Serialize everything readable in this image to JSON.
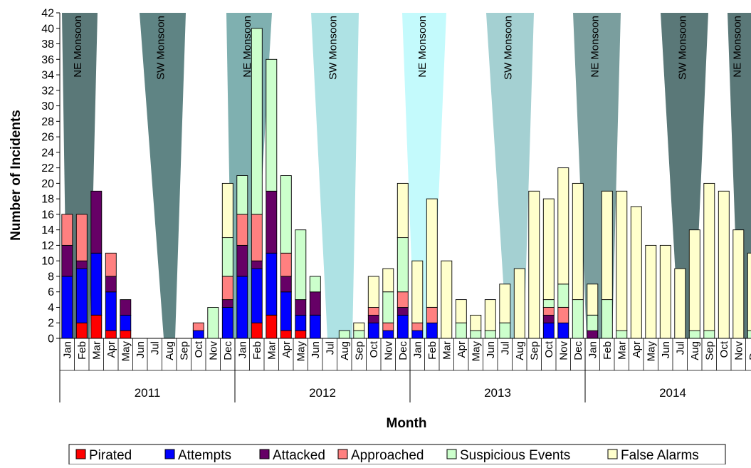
{
  "chart_data": {
    "type": "bar",
    "stacked": true,
    "ylabel": "Number of Incidents",
    "xlabel": "Month",
    "ylim": [
      0,
      42
    ],
    "ytick_step": 2,
    "years": [
      "2011",
      "2012",
      "2013",
      "2014"
    ],
    "months": [
      "Jan",
      "Feb",
      "Mar",
      "Apr",
      "May",
      "Jun",
      "Jul",
      "Aug",
      "Sep",
      "Oct",
      "Nov",
      "Dec"
    ],
    "series": [
      {
        "name": "Pirated",
        "color": "#ff0000",
        "values": [
          0,
          2,
          3,
          1,
          1,
          0,
          0,
          0,
          0,
          0,
          0,
          0,
          0,
          2,
          3,
          1,
          1,
          0,
          0,
          0,
          0,
          0,
          0,
          0,
          0,
          0,
          0,
          0,
          0,
          0,
          0,
          0,
          0,
          0,
          0,
          0,
          0,
          0,
          0,
          0,
          0,
          0,
          0,
          0,
          0,
          0,
          0,
          0
        ]
      },
      {
        "name": "Attempts",
        "color": "#0000ff",
        "values": [
          8,
          7,
          8,
          5,
          2,
          0,
          0,
          0,
          0,
          1,
          0,
          4,
          8,
          7,
          8,
          5,
          2,
          3,
          0,
          0,
          0,
          2,
          1,
          3,
          1,
          2,
          0,
          0,
          0,
          0,
          0,
          0,
          0,
          2,
          2,
          0,
          0,
          0,
          0,
          0,
          0,
          0,
          0,
          0,
          0,
          0,
          0,
          0
        ]
      },
      {
        "name": "Attacked",
        "color": "#660066",
        "values": [
          4,
          1,
          8,
          2,
          2,
          0,
          0,
          0,
          0,
          0,
          0,
          1,
          4,
          1,
          8,
          2,
          2,
          3,
          0,
          0,
          0,
          1,
          0,
          1,
          0,
          0,
          0,
          0,
          0,
          0,
          0,
          0,
          0,
          1,
          0,
          0,
          1,
          0,
          0,
          0,
          0,
          0,
          0,
          0,
          0,
          0,
          0,
          0
        ]
      },
      {
        "name": "Approached",
        "color": "#ff8080",
        "values": [
          4,
          6,
          0,
          3,
          0,
          0,
          0,
          0,
          0,
          1,
          0,
          3,
          4,
          6,
          0,
          3,
          0,
          0,
          0,
          0,
          0,
          1,
          1,
          2,
          1,
          2,
          0,
          0,
          0,
          0,
          0,
          0,
          0,
          1,
          2,
          0,
          0,
          0,
          0,
          0,
          0,
          0,
          0,
          0,
          0,
          0,
          0,
          0
        ]
      },
      {
        "name": "Suspicious Events",
        "color": "#ccffcc",
        "values": [
          0,
          0,
          0,
          0,
          0,
          0,
          0,
          0,
          0,
          0,
          4,
          5,
          5,
          24,
          17,
          10,
          9,
          2,
          0,
          1,
          1,
          0,
          4,
          7,
          0,
          0,
          0,
          2,
          1,
          1,
          2,
          0,
          0,
          1,
          3,
          5,
          2,
          5,
          1,
          0,
          0,
          0,
          0,
          1,
          1,
          0,
          0,
          1
        ]
      },
      {
        "name": "False Alarms",
        "color": "#ffffcc",
        "values": [
          0,
          0,
          0,
          0,
          0,
          0,
          0,
          0,
          0,
          0,
          0,
          7,
          0,
          0,
          0,
          0,
          0,
          0,
          0,
          0,
          1,
          4,
          3,
          7,
          8,
          14,
          10,
          3,
          2,
          4,
          5,
          9,
          19,
          13,
          15,
          15,
          4,
          14,
          18,
          17,
          12,
          12,
          9,
          13,
          19,
          19,
          14,
          10
        ]
      }
    ],
    "monsoon_bands": [
      {
        "label": "NE Monsoon",
        "color": "#5a7878"
      },
      {
        "label": "SW Monsoon",
        "color": "#5f8484"
      },
      {
        "label": "NE Monsoon",
        "color": "#7fb0b0"
      },
      {
        "label": "SW Monsoon",
        "color": "#aee2e4"
      },
      {
        "label": "NE Monsoon",
        "color": "#c4fafc"
      },
      {
        "label": "SW Monsoon",
        "color": "#a4d0d2"
      },
      {
        "label": "NE Monsoon",
        "color": "#7a9e9e"
      },
      {
        "label": "SW Monsoon",
        "color": "#5a7878"
      },
      {
        "label": "NE Monsoon",
        "color": "#5a7878"
      }
    ],
    "grid": false,
    "legend_position": "bottom"
  }
}
